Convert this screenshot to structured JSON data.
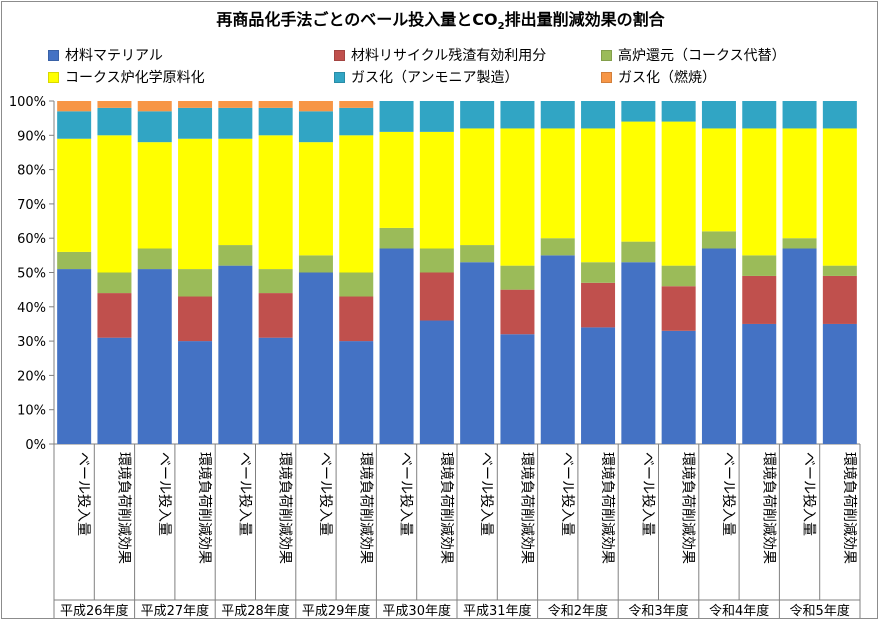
{
  "chart_data": {
    "type": "bar",
    "stacked": true,
    "title_main": "再商品化手法ごとのベール投入量とCO",
    "title_sub": "2",
    "title_tail": "排出量削減効果の割合",
    "yticks": [
      "0%",
      "10%",
      "20%",
      "30%",
      "40%",
      "50%",
      "60%",
      "70%",
      "80%",
      "90%",
      "100%"
    ],
    "ylim": [
      0,
      100
    ],
    "grid": false,
    "legend_position": "top",
    "categories": [
      "ベール投入量",
      "環境負荷削減効果",
      "ベール投入量",
      "環境負荷削減効果",
      "ベール投入量",
      "環境負荷削減効果",
      "ベール投入量",
      "環境負荷削減効果",
      "ベール投入量",
      "環境負荷削減効果",
      "ベール投入量",
      "環境負荷削減効果",
      "ベール投入量",
      "環境負荷削減効果",
      "ベール投入量",
      "環境負荷削減効果",
      "ベール投入量",
      "環境負荷削減効果",
      "ベール投入量",
      "環境負荷削減効果"
    ],
    "groups": [
      "平成26年度",
      "平成27年度",
      "平成28年度",
      "平成29年度",
      "平成30年度",
      "平成31年度",
      "令和2年度",
      "令和3年度",
      "令和4年度",
      "令和5年度"
    ],
    "series": [
      {
        "name": "材料マテリアル",
        "color": "#4472C4",
        "values": [
          51,
          31,
          51,
          30,
          52,
          31,
          50,
          30,
          57,
          36,
          53,
          32,
          55,
          34,
          53,
          33,
          57,
          35,
          57,
          35
        ]
      },
      {
        "name": "材料リサイクル残渣有効利用分",
        "color": "#C0504D",
        "values": [
          0,
          13,
          0,
          13,
          0,
          13,
          0,
          13,
          0,
          14,
          0,
          13,
          0,
          13,
          0,
          13,
          0,
          14,
          0,
          14
        ]
      },
      {
        "name": "高炉還元（コークス代替）",
        "color": "#9BBB59",
        "values": [
          5,
          6,
          6,
          8,
          6,
          7,
          5,
          7,
          6,
          7,
          5,
          7,
          5,
          6,
          6,
          6,
          5,
          6,
          3,
          3
        ]
      },
      {
        "name": "コークス炉化学原料化",
        "color": "#FFFF00",
        "values": [
          33,
          40,
          31,
          38,
          31,
          39,
          33,
          40,
          28,
          34,
          34,
          40,
          32,
          39,
          35,
          42,
          30,
          37,
          32,
          40
        ]
      },
      {
        "name": "ガス化（アンモニア製造）",
        "color": "#31A5C4",
        "values": [
          8,
          8,
          9,
          9,
          9,
          8,
          9,
          8,
          9,
          9,
          8,
          8,
          8,
          8,
          6,
          6,
          8,
          8,
          8,
          8
        ]
      },
      {
        "name": "ガス化（燃焼）",
        "color": "#F79646",
        "values": [
          3,
          2,
          3,
          2,
          2,
          2,
          3,
          2,
          0,
          0,
          0,
          0,
          0,
          0,
          0,
          0,
          0,
          0,
          0,
          0
        ]
      }
    ]
  }
}
